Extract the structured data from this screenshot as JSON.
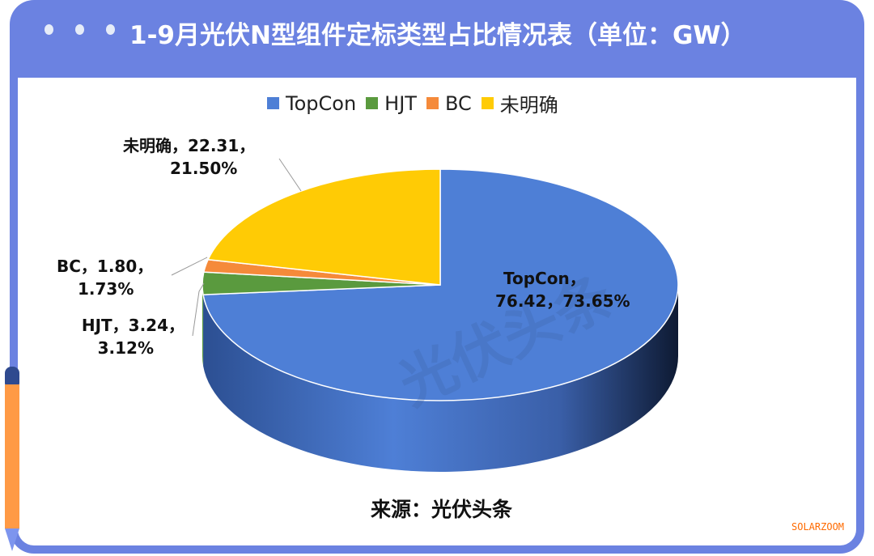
{
  "title": "1-9月光伏N型组件定标类型占比情况表（单位：GW）",
  "source": "来源：光伏头条",
  "watermark": "光伏头条",
  "logo_text": "SOLARZOOM",
  "colors": {
    "frame": "#6b82e1",
    "TopCon": "#4e7fd6",
    "HJT": "#5a9a3e",
    "BC": "#f58a3a",
    "未明确": "#ffcb05"
  },
  "chart_data": {
    "type": "pie",
    "style": "3d",
    "title": "1-9月光伏N型组件定标类型占比情况表（单位：GW）",
    "legend_position": "top",
    "categories": [
      "TopCon",
      "HJT",
      "BC",
      "未明确"
    ],
    "values": [
      76.42,
      3.24,
      1.8,
      22.31
    ],
    "percents": [
      "73.65%",
      "3.12%",
      "1.73%",
      "21.50%"
    ],
    "labels": [
      {
        "line1": "TopCon，",
        "line2": "76.42，73.65%"
      },
      {
        "line1": "HJT，3.24，",
        "line2": "3.12%"
      },
      {
        "line1": "BC，1.80，",
        "line2": "1.73%"
      },
      {
        "line1": "未明确，22.31，",
        "line2": "21.50%"
      }
    ]
  }
}
